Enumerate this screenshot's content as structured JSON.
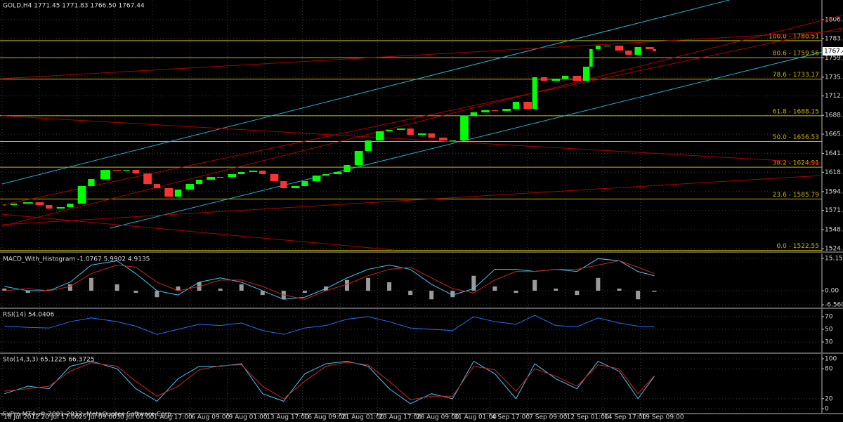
{
  "chart_data": [
    {
      "type": "candlestick",
      "title": "GOLD,H4  1771.45 1771.83 1766.50 1767.44",
      "up_color": "#00ff00",
      "down_color": "#ff3030",
      "x": [
        1,
        5,
        11,
        16,
        20,
        25,
        29,
        34,
        38,
        44,
        49,
        53,
        57,
        62,
        66,
        71,
        75,
        80,
        84,
        89,
        93,
        98,
        102,
        107,
        111,
        116,
        120,
        125,
        129,
        134,
        138,
        143,
        147,
        152,
        156,
        161,
        165,
        170,
        174,
        179,
        183,
        188,
        192,
        197,
        201,
        206,
        210,
        215,
        219,
        224,
        227,
        231,
        236,
        240,
        245,
        249,
        251,
        254,
        258,
        263,
        267,
        271,
        276,
        278
      ],
      "values": [
        1578.4,
        1580.1,
        1581.8,
        1578.4,
        1574.0,
        1575.8,
        1580.1,
        1601.7,
        1610.3,
        1621.5,
        1620.7,
        1621.5,
        1617.2,
        1604.3,
        1599.1,
        1588.7,
        1597.4,
        1604.3,
        1609.5,
        1612.9,
        1612.9,
        1616.4,
        1619.0,
        1620.7,
        1616.4,
        1607.7,
        1599.1,
        1601.7,
        1607.7,
        1614.6,
        1616.4,
        1619.0,
        1627.6,
        1644.9,
        1657.8,
        1669.0,
        1670.8,
        1672.5,
        1664.7,
        1666.5,
        1661.3,
        1657.8,
        1657.8,
        1688.0,
        1692.4,
        1695.0,
        1694.1,
        1696.7,
        1705.3,
        1696.7,
        1735.5,
        1731.2,
        1733.8,
        1737.3,
        1731.2,
        1748.5,
        1770.1,
        1774.4,
        1774.4,
        1768.3,
        1763.2,
        1772.7,
        1770.1,
        1767.4
      ],
      "last_price": 1767.44,
      "xlim": [
        -0.9,
        349.4
      ],
      "xticks": [
        {
          "value": 0,
          "label": "18 Jul 2012"
        },
        {
          "value": 16,
          "label": "20 Jul 17:00"
        },
        {
          "value": 32,
          "label": "25 Jul 09:00"
        },
        {
          "value": 48,
          "label": "30 Jul 01:00"
        },
        {
          "value": 64,
          "label": "1 Aug 17:00"
        },
        {
          "value": 80,
          "label": "6 Aug 09:00"
        },
        {
          "value": 96,
          "label": "9 Aug 01:00"
        },
        {
          "value": 112,
          "label": "13 Aug 17:00"
        },
        {
          "value": 128,
          "label": "16 Aug 09:00"
        },
        {
          "value": 144,
          "label": "21 Aug 01:00"
        },
        {
          "value": 160,
          "label": "23 Aug 17:00"
        },
        {
          "value": 176,
          "label": "28 Aug 09:00"
        },
        {
          "value": 192,
          "label": "31 Aug 01:00"
        },
        {
          "value": 208,
          "label": "4 Sep 17:00"
        },
        {
          "value": 224,
          "label": "7 Sep 09:00"
        },
        {
          "value": 240,
          "label": "12 Sep 01:00"
        },
        {
          "value": 256,
          "label": "14 Sep 17:00"
        },
        {
          "value": 272,
          "label": "19 Sep 09:00"
        }
      ],
      "ylim": [
        1521.4,
        1830.5
      ],
      "yticks": [
        1806.35,
        {
          "value": 1783.2,
          "label": "1783.20"
        },
        1759.4,
        {
          "value": 1735.6,
          "label": "1735.60"
        },
        {
          "value": 1712.5,
          "label": "1712.50"
        },
        {
          "value": 1688.7,
          "label": "1688.70"
        },
        {
          "value": 1665.6,
          "label": "1665.60"
        },
        {
          "value": 1641.8,
          "label": "1641.80"
        },
        {
          "value": 1618.7,
          "label": "1618.70"
        },
        {
          "value": 1594.9,
          "label": "1594.90"
        },
        {
          "value": 1571.8,
          "label": "1571.80"
        },
        {
          "value": 1548.0,
          "label": "1548.00"
        },
        {
          "value": 1524.9,
          "label": "1524.90"
        }
      ],
      "levels_color": "#c8b400",
      "levels": [
        {
          "value": 1780.51,
          "label": "100.0 - 1780.51"
        },
        {
          "value": 1759.56,
          "label": "80.6 - 1759.56"
        },
        {
          "value": 1733.17,
          "label": "78.6 - 1733.17"
        },
        {
          "value": 1688.15,
          "label": "61.8 - 1688.15"
        },
        {
          "value": 1656.53,
          "label": "50.0 - 1656.53"
        },
        {
          "value": 1624.91,
          "label": "38.2 - 1624.91"
        },
        {
          "value": 1585.79,
          "label": "23.6 - 1585.79"
        },
        {
          "value": 1522.55,
          "label": "0.0 - 1522.55"
        }
      ],
      "trendlines": [
        {
          "color": "#20b0d0",
          "x": [
            0,
            310
          ],
          "y": [
            1604.3,
            1830.5
          ]
        },
        {
          "color": "#20b0d0",
          "x": [
            46,
            357
          ],
          "y": [
            1549.9,
            1771.8
          ]
        },
        {
          "color": "#b00000",
          "x": [
            0,
            358
          ],
          "y": [
            1552.4,
            1811.5
          ]
        },
        {
          "color": "#b00000",
          "x": [
            0,
            358
          ],
          "y": [
            1578.4,
            1796.0
          ]
        },
        {
          "color": "#b00000",
          "x": [
            0,
            358
          ],
          "y": [
            1733.8,
            1792.5
          ]
        },
        {
          "color": "#b00000",
          "x": [
            0,
            349
          ],
          "y": [
            1688.0,
            1630.2
          ]
        },
        {
          "color": "#b00000",
          "x": [
            0,
            349
          ],
          "y": [
            1554.2,
            1614.6
          ]
        },
        {
          "color": "#b00000",
          "x": [
            0,
            167
          ],
          "y": [
            1567.1,
            1523.1
          ]
        }
      ]
    },
    {
      "type": "macd",
      "title": "MACD_With_Histogram -1.0767 5.9902 4.9135",
      "x": [
        1,
        11,
        20,
        29,
        38,
        49,
        57,
        66,
        75,
        84,
        93,
        102,
        111,
        120,
        129,
        138,
        147,
        156,
        165,
        174,
        183,
        192,
        201,
        210,
        219,
        227,
        236,
        245,
        254,
        263,
        271,
        278
      ],
      "histogram": {
        "color": "#c0c0c0",
        "values": [
          1,
          -1,
          0.5,
          3,
          6,
          3,
          -1,
          -3,
          2,
          4,
          1,
          3,
          -2,
          -4,
          -1,
          2,
          5,
          6,
          4,
          -2,
          -4,
          -3,
          7,
          2,
          -1,
          5,
          1,
          -2,
          6,
          1,
          -4,
          -0.5
        ]
      },
      "series": [
        {
          "color": "#40c8f0",
          "values": [
            2,
            0,
            0,
            4,
            12,
            14,
            8,
            0,
            -2,
            4,
            6,
            4,
            0,
            -4,
            -3,
            1,
            6,
            10,
            12,
            10,
            3,
            -2,
            1,
            10,
            10,
            9,
            10,
            9,
            15,
            14,
            9,
            7
          ]
        },
        {
          "color": "#d02020",
          "values": [
            0,
            1,
            0,
            2,
            8,
            12,
            11,
            4,
            0,
            2,
            5,
            5,
            2,
            -2,
            -4,
            0,
            3,
            7,
            10,
            11,
            6,
            1,
            -1,
            5,
            9,
            9,
            10,
            10,
            12,
            14,
            11,
            8
          ]
        }
      ],
      "ylim": [
        -7.85,
        17.4
      ],
      "yticks": [
        15.1511,
        {
          "value": 0,
          "label": "0.00"
        },
        -6.5607
      ]
    },
    {
      "type": "line",
      "title": "RSI(14) 54.0406",
      "x": [
        1,
        11,
        20,
        29,
        38,
        49,
        57,
        66,
        75,
        84,
        93,
        102,
        111,
        120,
        129,
        138,
        147,
        156,
        165,
        174,
        183,
        192,
        201,
        210,
        219,
        227,
        236,
        245,
        254,
        263,
        271,
        278
      ],
      "series": [
        {
          "color": "#2070ff",
          "values": [
            55,
            53,
            52,
            62,
            68,
            62,
            55,
            42,
            50,
            58,
            56,
            60,
            48,
            42,
            52,
            56,
            66,
            70,
            62,
            52,
            50,
            48,
            70,
            62,
            58,
            72,
            56,
            54,
            68,
            60,
            55,
            54
          ]
        }
      ],
      "ylim": [
        13.3,
        82.2
      ],
      "yticks": [
        70,
        50,
        30
      ]
    },
    {
      "type": "line",
      "title": "Sto(14,3,3) 65.1225 66.3725",
      "x": [
        1,
        11,
        20,
        29,
        38,
        49,
        57,
        66,
        75,
        84,
        93,
        102,
        111,
        120,
        129,
        138,
        147,
        156,
        165,
        174,
        183,
        192,
        201,
        210,
        219,
        227,
        236,
        245,
        254,
        263,
        271,
        278
      ],
      "series": [
        {
          "color": "#40c8f0",
          "values": [
            30,
            45,
            40,
            85,
            95,
            80,
            40,
            15,
            60,
            85,
            85,
            90,
            30,
            15,
            70,
            90,
            95,
            85,
            40,
            10,
            30,
            20,
            95,
            70,
            20,
            90,
            60,
            40,
            95,
            75,
            20,
            65
          ]
        },
        {
          "color": "#d02020",
          "values": [
            35,
            40,
            45,
            75,
            92,
            85,
            55,
            25,
            45,
            78,
            86,
            88,
            45,
            20,
            55,
            85,
            93,
            88,
            55,
            18,
            25,
            25,
            85,
            78,
            35,
            80,
            65,
            45,
            88,
            80,
            30,
            66
          ]
        }
      ],
      "ylim": [
        -8.4,
        109.8
      ],
      "yticks": [
        100,
        80,
        20,
        0
      ]
    }
  ],
  "footer": "FxPro MT4, © 2001-2012, MetaQuotes Software Corp."
}
